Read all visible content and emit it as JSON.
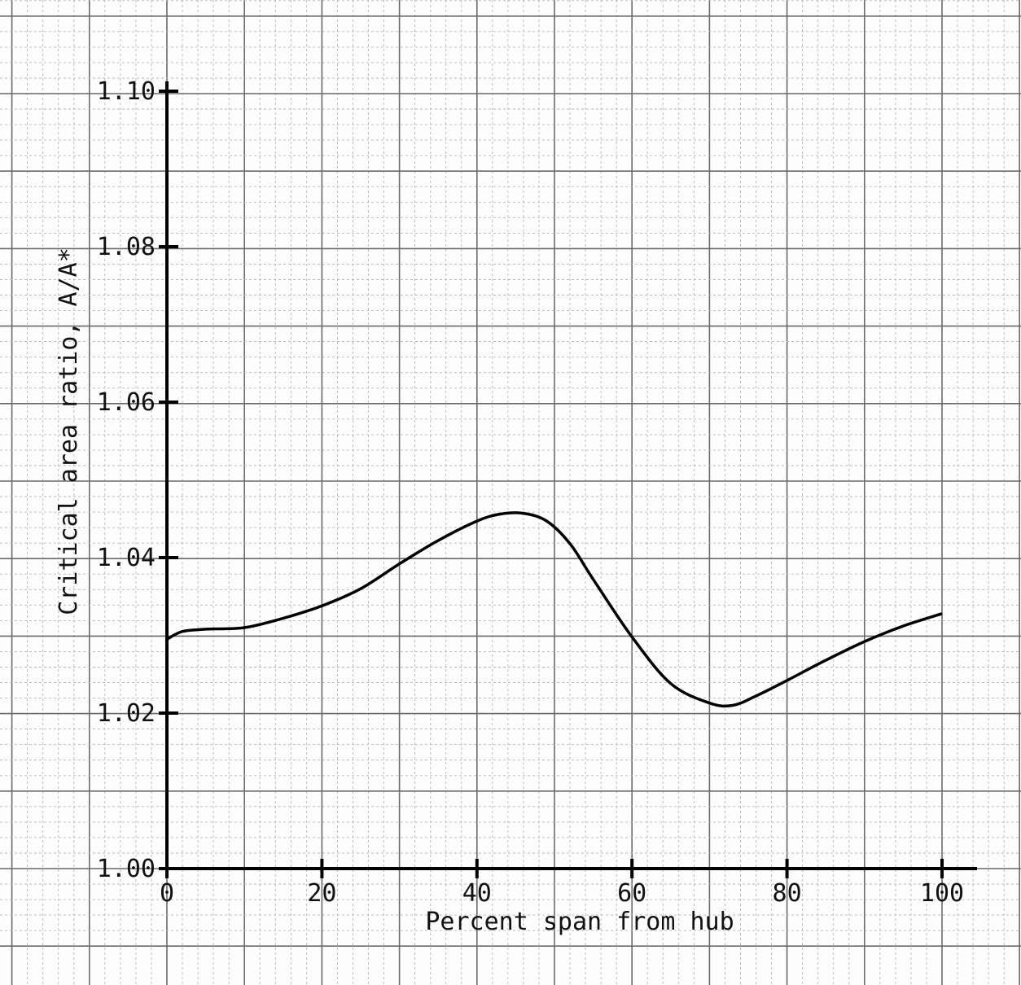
{
  "chart_data": {
    "type": "line",
    "title": "",
    "xlabel": "Percent span from hub",
    "ylabel": "Critical area ratio, A/A*",
    "xlim": [
      0,
      100
    ],
    "ylim": [
      1.0,
      1.1
    ],
    "xticks": [
      0,
      20,
      40,
      60,
      80,
      100
    ],
    "xtick_labels": [
      "0",
      "20",
      "40",
      "60",
      "80",
      "100"
    ],
    "yticks": [
      1.0,
      1.02,
      1.04,
      1.06,
      1.08,
      1.1
    ],
    "ytick_labels": [
      "1.00",
      "1.02",
      "1.04",
      "1.06",
      "1.08",
      "1.10"
    ],
    "grid": true,
    "series": [
      {
        "name": "",
        "x": [
          0,
          2,
          5,
          10,
          15,
          20,
          25,
          30,
          35,
          40,
          43,
          46,
          49,
          52,
          55,
          60,
          65,
          70,
          73,
          76,
          80,
          85,
          90,
          95,
          100
        ],
        "y": [
          1.0295,
          1.0305,
          1.0308,
          1.031,
          1.0322,
          1.0338,
          1.036,
          1.0392,
          1.0422,
          1.0447,
          1.0456,
          1.0457,
          1.0447,
          1.0418,
          1.0372,
          1.0298,
          1.0238,
          1.0213,
          1.021,
          1.0222,
          1.0242,
          1.0268,
          1.0292,
          1.0312,
          1.0328
        ]
      }
    ]
  }
}
